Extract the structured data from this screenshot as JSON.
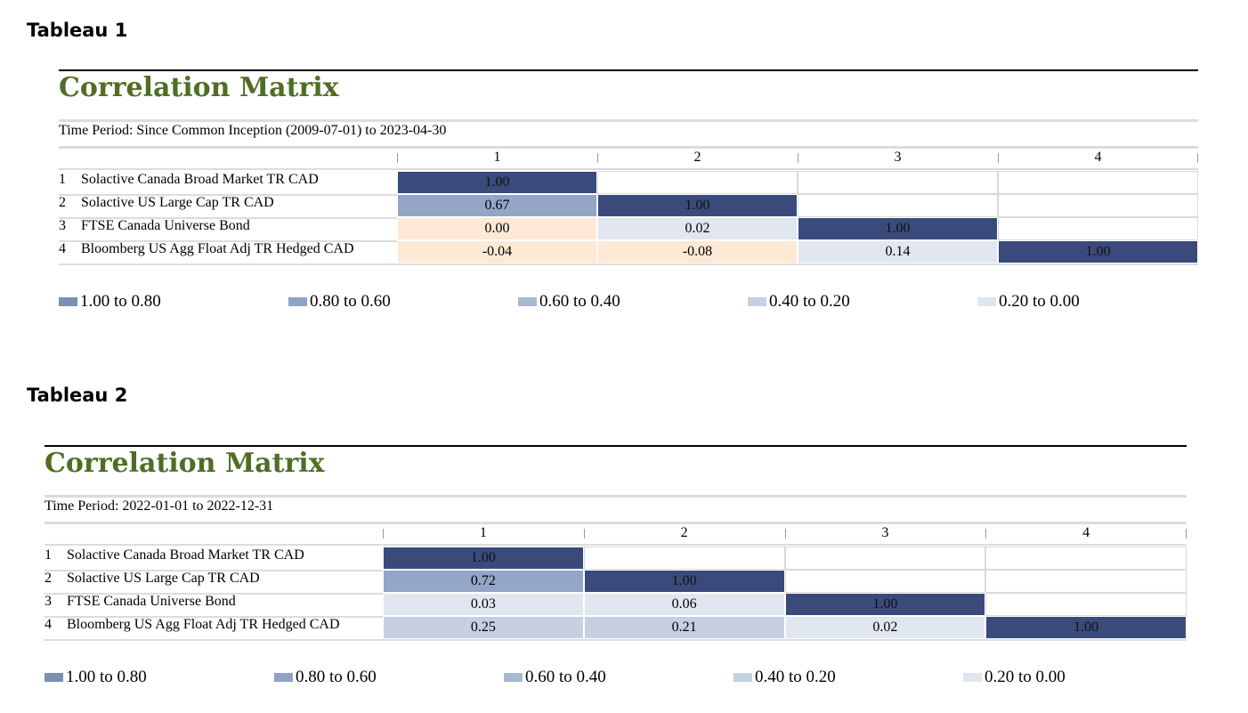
{
  "tables": [
    {
      "heading": "Tableau 1",
      "title": "Correlation Matrix",
      "period": "Time Period: Since Common Inception (2009-07-01) to 2023-04-30",
      "columns": [
        "1",
        "2",
        "3",
        "4"
      ],
      "rows": [
        {
          "num": "1",
          "label": "Solactive Canada Broad Market TR CAD",
          "values": [
            "1.00",
            "",
            "",
            ""
          ]
        },
        {
          "num": "2",
          "label": "Solactive US Large Cap TR CAD",
          "values": [
            "0.67",
            "1.00",
            "",
            ""
          ]
        },
        {
          "num": "3",
          "label": "FTSE Canada Universe Bond",
          "values": [
            "0.00",
            "0.02",
            "1.00",
            ""
          ]
        },
        {
          "num": "4",
          "label": "Bloomberg US Agg Float Adj TR Hedged CAD",
          "values": [
            "-0.04",
            "-0.08",
            "0.14",
            "1.00"
          ]
        }
      ],
      "legend": [
        "1.00 to 0.80",
        "0.80 to 0.60",
        "0.60 to 0.40",
        "0.40 to 0.20",
        "0.20 to 0.00"
      ]
    },
    {
      "heading": "Tableau 2",
      "title": "Correlation Matrix",
      "period": "Time Period: 2022-01-01 to 2022-12-31",
      "columns": [
        "1",
        "2",
        "3",
        "4"
      ],
      "rows": [
        {
          "num": "1",
          "label": "Solactive Canada Broad Market TR CAD",
          "values": [
            "1.00",
            "",
            "",
            ""
          ]
        },
        {
          "num": "2",
          "label": "Solactive US Large Cap TR CAD",
          "values": [
            "0.72",
            "1.00",
            "",
            ""
          ]
        },
        {
          "num": "3",
          "label": "FTSE Canada Universe Bond",
          "values": [
            "0.03",
            "0.06",
            "1.00",
            ""
          ]
        },
        {
          "num": "4",
          "label": "Bloomberg US Agg Float Adj TR Hedged CAD",
          "values": [
            "0.25",
            "0.21",
            "0.02",
            "1.00"
          ]
        }
      ],
      "legend": [
        "1.00 to 0.80",
        "0.80 to 0.60",
        "0.60 to 0.40",
        "0.40 to 0.20",
        "0.20 to 0.00"
      ]
    }
  ],
  "colors": {
    "title_green": "#4f6e23",
    "legend_swatches": [
      "#7d8fb3",
      "#8fa3c4",
      "#a9b8d2",
      "#c5d0e2",
      "#e0e6f0"
    ],
    "cell_1_00": "#3a4a7a",
    "cell_0_80_0_60": "#93a6c7",
    "cell_0_40_0_20": "#c5d0e2",
    "cell_0_20_0_00": "#e1e7f0",
    "cell_negative_zero": "#fde9d4"
  }
}
